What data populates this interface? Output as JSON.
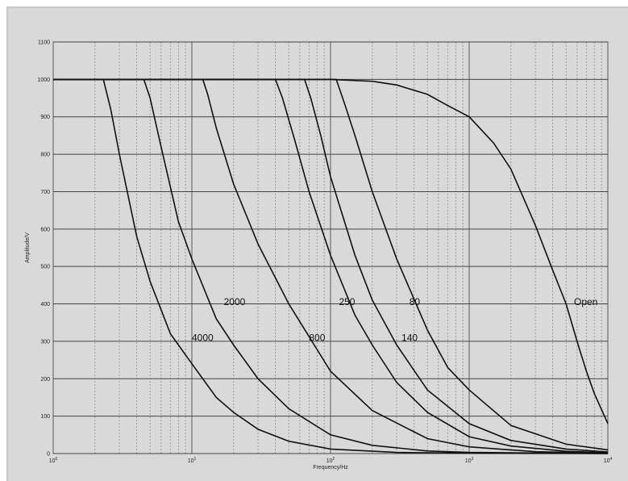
{
  "chart_data": {
    "type": "line",
    "title": "",
    "xlabel": "Frequency/Hz",
    "ylabel": "Amplitude/V",
    "xscale": "log",
    "xlim": [
      1,
      10000
    ],
    "ylim": [
      0,
      1100
    ],
    "grid": true,
    "yticks": [
      "0",
      "100",
      "200",
      "300",
      "400",
      "500",
      "600",
      "700",
      "800",
      "900",
      "1000",
      "1100"
    ],
    "xticks": [
      {
        "base": "10",
        "exp": "0"
      },
      {
        "base": "10",
        "exp": "1"
      },
      {
        "base": "10",
        "exp": "2"
      },
      {
        "base": "10",
        "exp": "3"
      },
      {
        "base": "10",
        "exp": "4"
      }
    ],
    "series": [
      {
        "name": "4000",
        "label_at": [
          10,
          310
        ],
        "points": [
          [
            1,
            1000
          ],
          [
            2.3,
            1000
          ],
          [
            2.6,
            920
          ],
          [
            3,
            800
          ],
          [
            4,
            580
          ],
          [
            5,
            460
          ],
          [
            7,
            320
          ],
          [
            10,
            240
          ],
          [
            15,
            150
          ],
          [
            20,
            110
          ],
          [
            30,
            65
          ],
          [
            50,
            33
          ],
          [
            100,
            12
          ],
          [
            300,
            3
          ],
          [
            1000,
            1
          ],
          [
            10000,
            0
          ]
        ]
      },
      {
        "name": "2000",
        "label_at": [
          17,
          405
        ],
        "points": [
          [
            1,
            1000
          ],
          [
            4.5,
            1000
          ],
          [
            5,
            950
          ],
          [
            6,
            820
          ],
          [
            8,
            620
          ],
          [
            10,
            520
          ],
          [
            15,
            360
          ],
          [
            20,
            290
          ],
          [
            30,
            200
          ],
          [
            50,
            120
          ],
          [
            100,
            50
          ],
          [
            200,
            22
          ],
          [
            500,
            7
          ],
          [
            1000,
            3
          ],
          [
            10000,
            0
          ]
        ]
      },
      {
        "name": "800",
        "label_at": [
          70,
          310
        ],
        "points": [
          [
            1,
            1000
          ],
          [
            12,
            1000
          ],
          [
            13,
            960
          ],
          [
            15,
            870
          ],
          [
            20,
            720
          ],
          [
            30,
            560
          ],
          [
            50,
            400
          ],
          [
            100,
            220
          ],
          [
            200,
            115
          ],
          [
            500,
            40
          ],
          [
            1000,
            18
          ],
          [
            3000,
            5
          ],
          [
            10000,
            1
          ]
        ]
      },
      {
        "name": "250",
        "label_at": [
          115,
          405
        ],
        "points": [
          [
            1,
            1000
          ],
          [
            40,
            1000
          ],
          [
            45,
            950
          ],
          [
            55,
            840
          ],
          [
            70,
            700
          ],
          [
            100,
            530
          ],
          [
            150,
            370
          ],
          [
            200,
            290
          ],
          [
            300,
            190
          ],
          [
            500,
            110
          ],
          [
            1000,
            45
          ],
          [
            2000,
            20
          ],
          [
            5000,
            6
          ],
          [
            10000,
            2
          ]
        ]
      },
      {
        "name": "140",
        "label_at": [
          325,
          310
        ],
        "points": [
          [
            1,
            1000
          ],
          [
            65,
            1000
          ],
          [
            72,
            950
          ],
          [
            85,
            850
          ],
          [
            100,
            740
          ],
          [
            150,
            530
          ],
          [
            200,
            410
          ],
          [
            300,
            290
          ],
          [
            500,
            170
          ],
          [
            1000,
            80
          ],
          [
            2000,
            35
          ],
          [
            5000,
            12
          ],
          [
            10000,
            4
          ]
        ]
      },
      {
        "name": "80",
        "label_at": [
          370,
          405
        ],
        "points": [
          [
            1,
            1000
          ],
          [
            110,
            1000
          ],
          [
            125,
            940
          ],
          [
            150,
            850
          ],
          [
            200,
            700
          ],
          [
            300,
            520
          ],
          [
            500,
            330
          ],
          [
            700,
            230
          ],
          [
            1000,
            170
          ],
          [
            2000,
            75
          ],
          [
            5000,
            25
          ],
          [
            10000,
            10
          ]
        ]
      },
      {
        "name": "Open",
        "label_at": [
          5700,
          405
        ],
        "points": [
          [
            1,
            1000
          ],
          [
            100,
            1000
          ],
          [
            200,
            995
          ],
          [
            300,
            985
          ],
          [
            500,
            960
          ],
          [
            700,
            930
          ],
          [
            1000,
            900
          ],
          [
            1500,
            830
          ],
          [
            2000,
            760
          ],
          [
            3000,
            610
          ],
          [
            4000,
            490
          ],
          [
            5000,
            400
          ],
          [
            6000,
            300
          ],
          [
            7000,
            220
          ],
          [
            8000,
            160
          ],
          [
            10000,
            80
          ]
        ]
      }
    ]
  }
}
